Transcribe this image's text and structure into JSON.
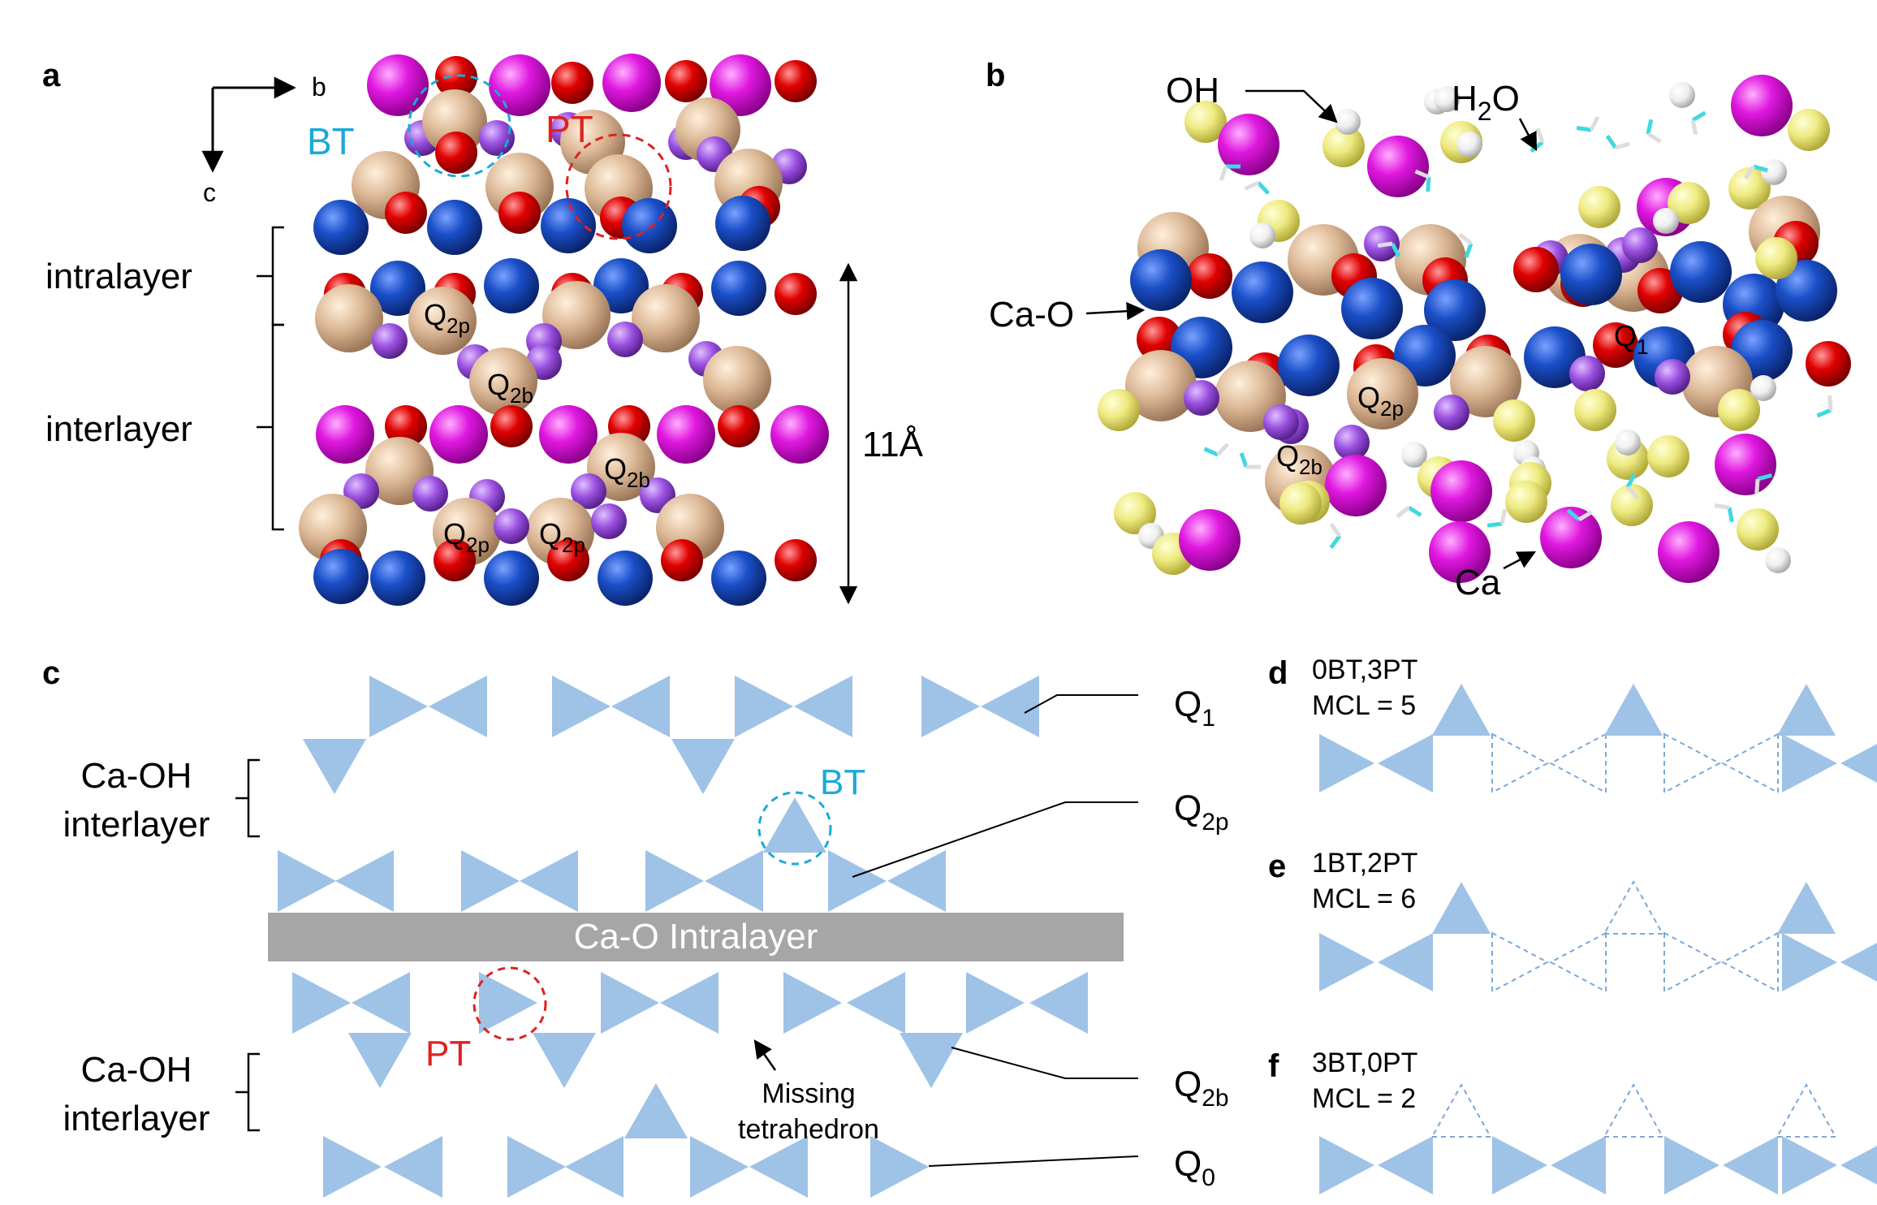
{
  "panels": {
    "a": {
      "letter": "a",
      "axis_b": "b",
      "axis_c": "c",
      "bt": "BT",
      "pt": "PT",
      "intralayer": "intralayer",
      "interlayer": "interlayer",
      "q2p": "Q",
      "q2p_sub": "2p",
      "q2b": "Q",
      "q2b_sub": "2b",
      "spacing": "11Å"
    },
    "b": {
      "letter": "b",
      "oh": "OH",
      "h2o_h": "H",
      "h2o_sub": "2",
      "h2o_o": "O",
      "cao": "Ca-O",
      "q1": "Q",
      "q1_sub": "1",
      "q2p": "Q",
      "q2p_sub": "2p",
      "q2b": "Q",
      "q2b_sub": "2b",
      "ca": "Ca"
    },
    "c": {
      "letter": "c",
      "caoh_line1": "Ca-OH",
      "caoh_line2": "interlayer",
      "bt": "BT",
      "pt": "PT",
      "intralayer_bar": "Ca-O Intralayer",
      "missing_line1": "Missing",
      "missing_line2": "tetrahedron",
      "q1": "Q",
      "q1_sub": "1",
      "q2p": "Q",
      "q2p_sub": "2p",
      "q2b": "Q",
      "q2b_sub": "2b",
      "q0": "Q",
      "q0_sub": "0"
    },
    "d": {
      "letter": "d",
      "line1": "0BT,3PT",
      "line2": "MCL = 5"
    },
    "e": {
      "letter": "e",
      "line1": "1BT,2PT",
      "line2": "MCL = 6"
    },
    "f": {
      "letter": "f",
      "line1": "3BT,0PT",
      "line2": "MCL = 2"
    }
  },
  "colors": {
    "ca_magenta": "#e018e0",
    "oxygen_red": "#e00000",
    "calcium_blue": "#1a4fc8",
    "silicon_tan": "#dcb896",
    "bridge_purple": "#9a50e0",
    "hydroxyl_yellow": "#eeea80",
    "hydrogen_white": "#f0f0f0",
    "water_cyan": "#40d8e0",
    "tetra_blue": "#9fc2e7",
    "bar_gray": "#a6a6a6",
    "bt_cyan": "#1aaad8",
    "pt_red": "#e02020"
  },
  "icons": [
    "arrow-right-icon",
    "arrow-down-icon",
    "curly-brace-icon"
  ]
}
